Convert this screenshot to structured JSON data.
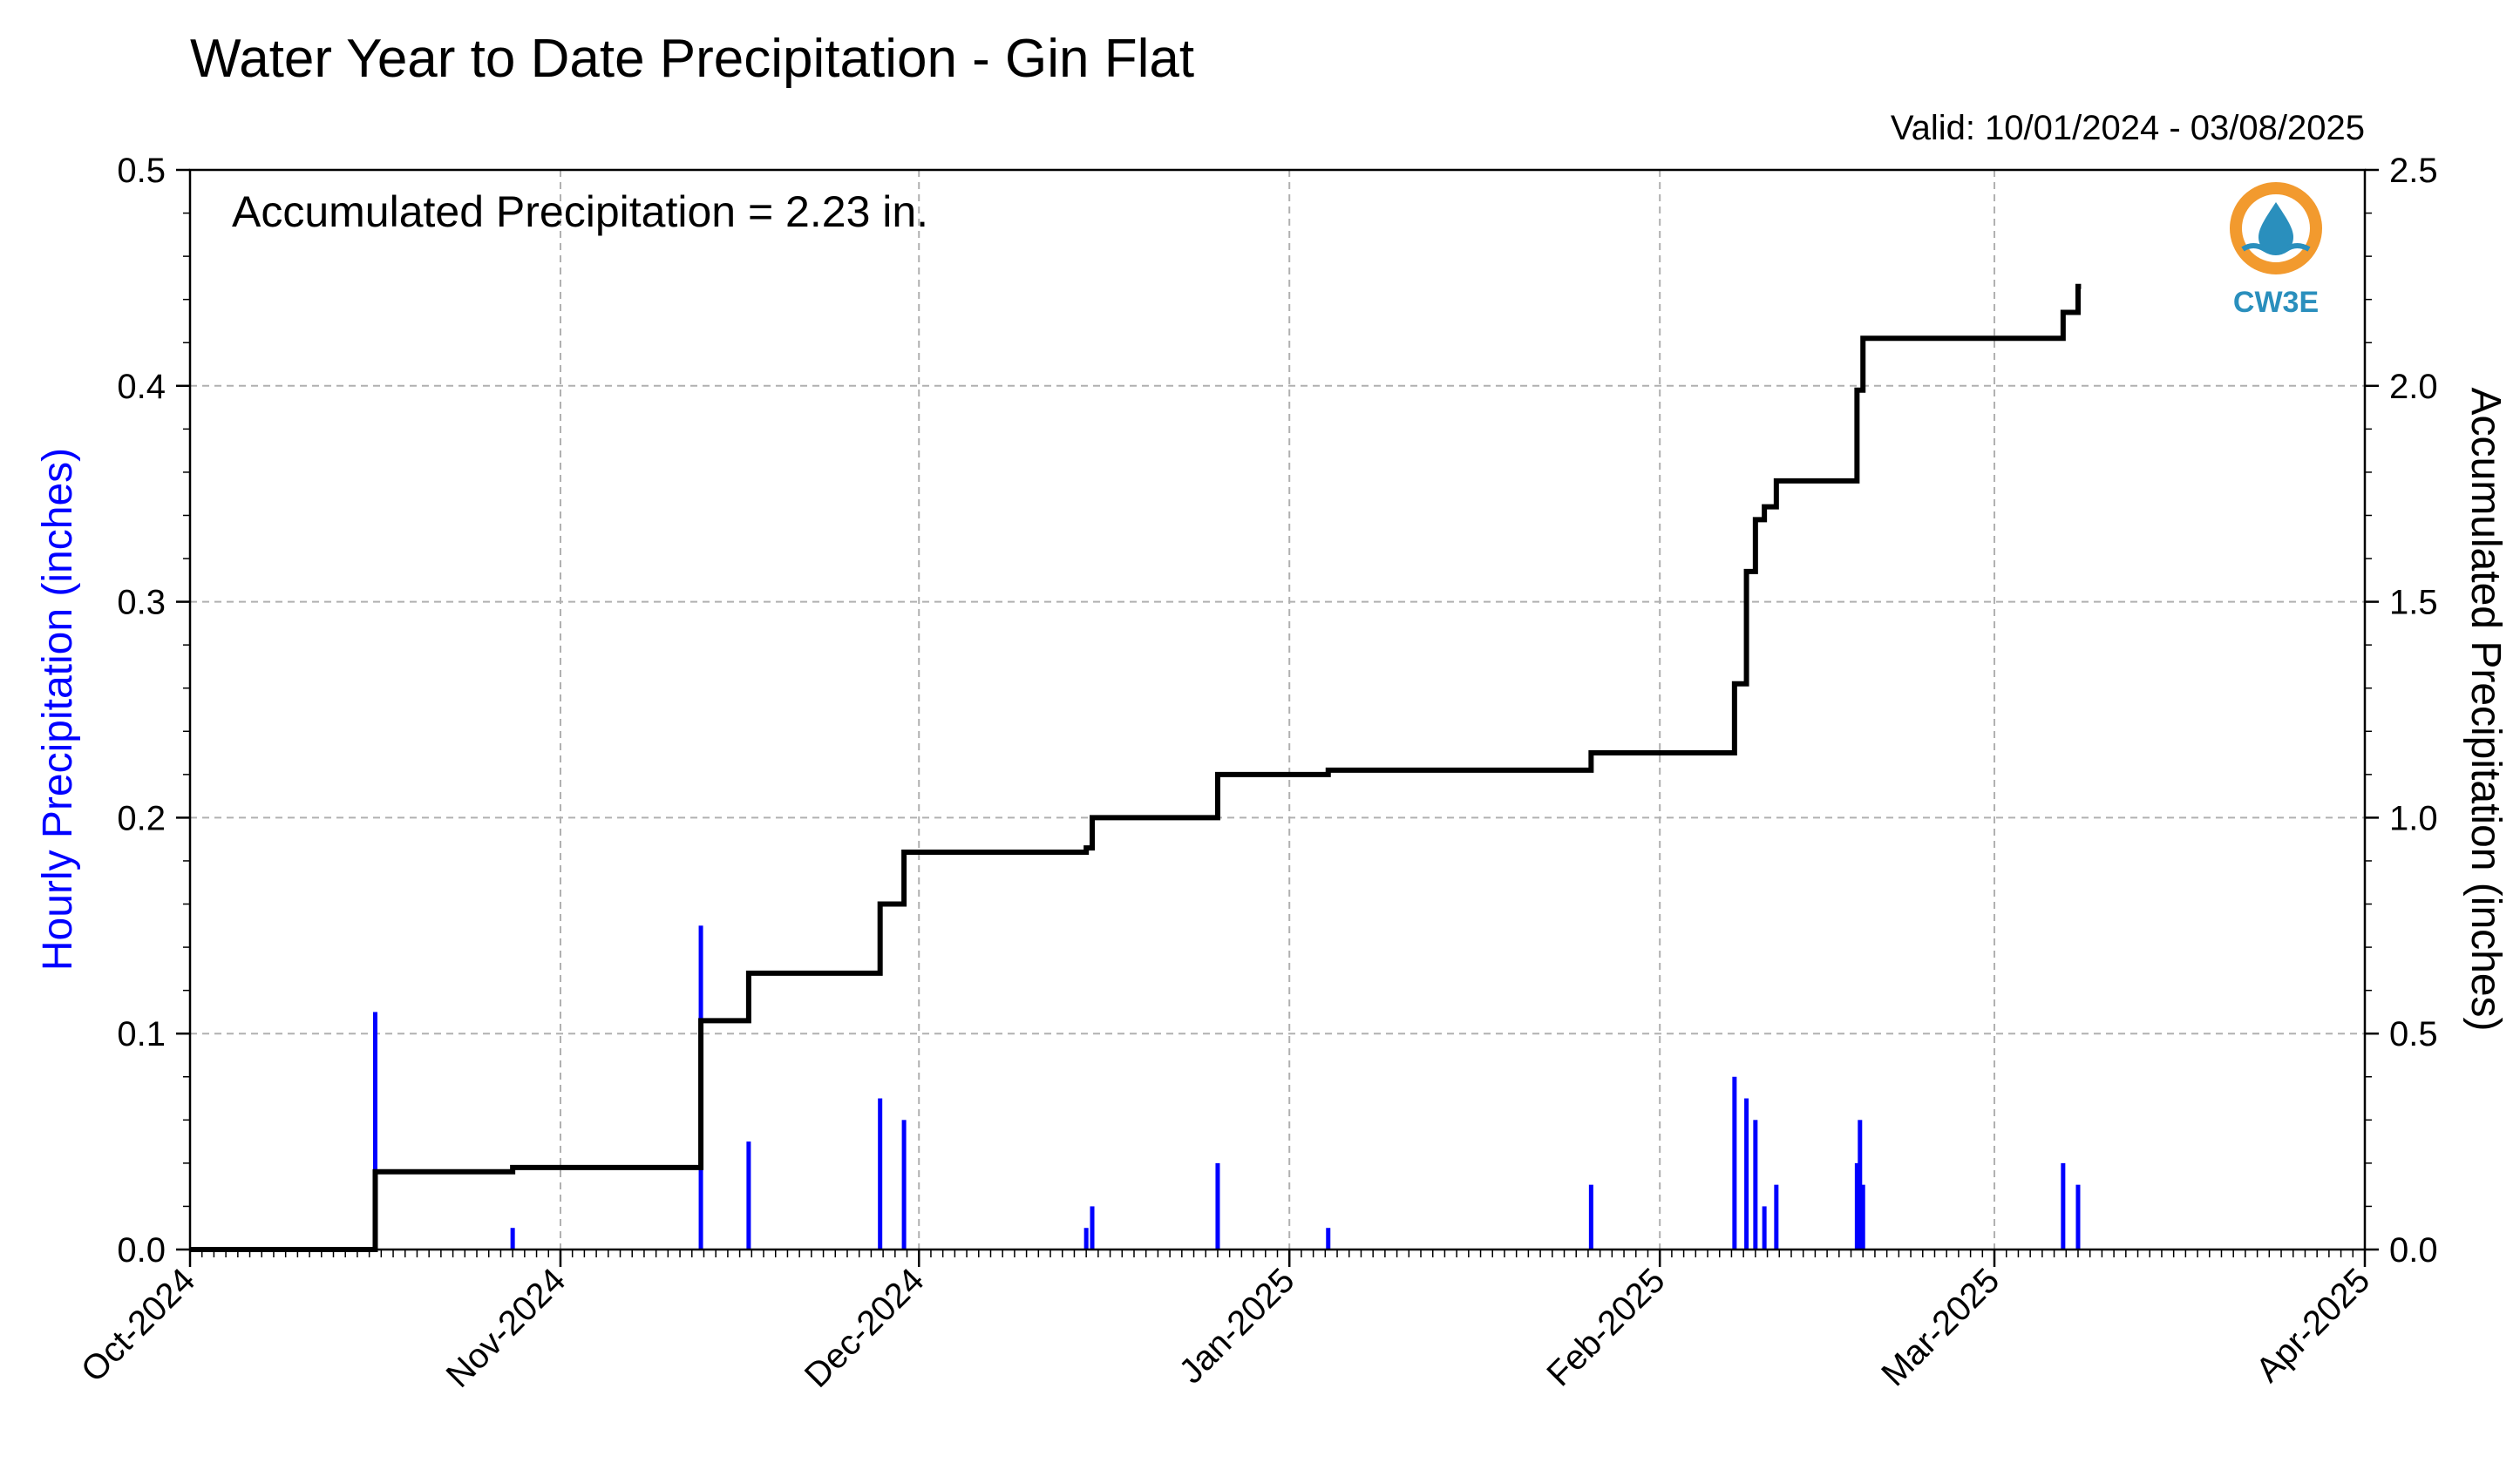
{
  "chart_data": {
    "type": "bar+line",
    "title": "Water Year to Date Precipitation - Gin Flat",
    "valid_range": "Valid: 10/01/2024 - 03/08/2025",
    "annotation": "Accumulated Precipitation = 2.23 in.",
    "ylabel_left": "Hourly Precipitation (inches)",
    "ylabel_right": "Accumulated Precipitation (inches)",
    "ylim_left": [
      0,
      0.5
    ],
    "ylim_right": [
      0,
      2.5
    ],
    "xlim": [
      "2024-10-01",
      "2025-04-01"
    ],
    "x_ticks": [
      {
        "date": "2024-10-01",
        "label": "Oct-2024"
      },
      {
        "date": "2024-11-01",
        "label": "Nov-2024"
      },
      {
        "date": "2024-12-01",
        "label": "Dec-2024"
      },
      {
        "date": "2025-01-01",
        "label": "Jan-2025"
      },
      {
        "date": "2025-02-01",
        "label": "Feb-2025"
      },
      {
        "date": "2025-03-01",
        "label": "Mar-2025"
      },
      {
        "date": "2025-04-01",
        "label": "Apr-2025"
      }
    ],
    "y_ticks_left": [
      "0.0",
      "0.1",
      "0.2",
      "0.3",
      "0.4",
      "0.5"
    ],
    "y_ticks_right": [
      "0.0",
      "0.5",
      "1.0",
      "1.5",
      "2.0",
      "2.5"
    ],
    "grid": true,
    "series": [
      {
        "name": "Hourly Precipitation",
        "axis": "left",
        "kind": "bar",
        "color": "#0000ff",
        "points": [
          {
            "x": "2024-10-16T12:00",
            "y": 0.11
          },
          {
            "x": "2024-10-28T00:00",
            "y": 0.01
          },
          {
            "x": "2024-11-12T18:00",
            "y": 0.15
          },
          {
            "x": "2024-11-16T18:00",
            "y": 0.05
          },
          {
            "x": "2024-11-27T18:00",
            "y": 0.07
          },
          {
            "x": "2024-11-29T18:00",
            "y": 0.06
          },
          {
            "x": "2024-12-15T00:00",
            "y": 0.01
          },
          {
            "x": "2024-12-15T12:00",
            "y": 0.02
          },
          {
            "x": "2024-12-26T00:00",
            "y": 0.04
          },
          {
            "x": "2025-01-04T06:00",
            "y": 0.01
          },
          {
            "x": "2025-01-26T06:00",
            "y": 0.03
          },
          {
            "x": "2025-02-07T06:00",
            "y": 0.08
          },
          {
            "x": "2025-02-08T06:00",
            "y": 0.07
          },
          {
            "x": "2025-02-09T00:00",
            "y": 0.06
          },
          {
            "x": "2025-02-09T18:00",
            "y": 0.02
          },
          {
            "x": "2025-02-10T18:00",
            "y": 0.03
          },
          {
            "x": "2025-02-17T12:00",
            "y": 0.04
          },
          {
            "x": "2025-02-17T18:00",
            "y": 0.06
          },
          {
            "x": "2025-02-18T00:00",
            "y": 0.03
          },
          {
            "x": "2025-03-06T18:00",
            "y": 0.04
          },
          {
            "x": "2025-03-08T00:00",
            "y": 0.03
          }
        ]
      },
      {
        "name": "Accumulated Precipitation",
        "axis": "right",
        "kind": "step-line",
        "color": "#000000",
        "points": [
          {
            "x": "2024-10-01T00:00",
            "y": 0.0
          },
          {
            "x": "2024-10-16T12:00",
            "y": 0.18
          },
          {
            "x": "2024-10-28T00:00",
            "y": 0.19
          },
          {
            "x": "2024-11-12T18:00",
            "y": 0.53
          },
          {
            "x": "2024-11-16T18:00",
            "y": 0.64
          },
          {
            "x": "2024-11-27T18:00",
            "y": 0.8
          },
          {
            "x": "2024-11-29T18:00",
            "y": 0.92
          },
          {
            "x": "2024-12-15T00:00",
            "y": 0.93
          },
          {
            "x": "2024-12-15T12:00",
            "y": 1.0
          },
          {
            "x": "2024-12-26T00:00",
            "y": 1.1
          },
          {
            "x": "2025-01-04T06:00",
            "y": 1.11
          },
          {
            "x": "2025-01-26T06:00",
            "y": 1.15
          },
          {
            "x": "2025-02-07T06:00",
            "y": 1.31
          },
          {
            "x": "2025-02-08T06:00",
            "y": 1.57
          },
          {
            "x": "2025-02-09T00:00",
            "y": 1.69
          },
          {
            "x": "2025-02-09T18:00",
            "y": 1.72
          },
          {
            "x": "2025-02-10T18:00",
            "y": 1.78
          },
          {
            "x": "2025-02-17T12:00",
            "y": 1.99
          },
          {
            "x": "2025-02-18T00:00",
            "y": 2.11
          },
          {
            "x": "2025-03-06T18:00",
            "y": 2.17
          },
          {
            "x": "2025-03-08T00:00",
            "y": 2.23
          },
          {
            "x": "2025-03-08T06:00",
            "y": 2.23
          }
        ]
      }
    ]
  },
  "logo": {
    "text": "CW3E",
    "ring_color": "#f29a2e",
    "drop_color": "#2a8fbd"
  }
}
